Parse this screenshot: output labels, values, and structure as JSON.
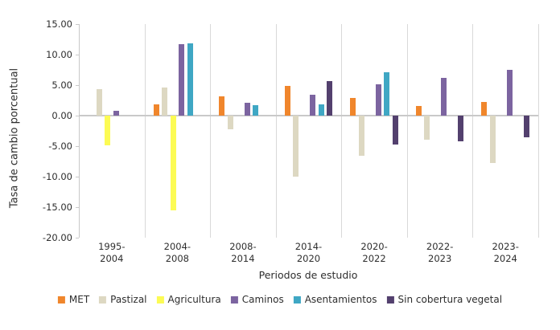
{
  "chart_data": {
    "type": "bar",
    "title": "",
    "xlabel": "Periodos de estudio",
    "ylabel": "Tasa de cambio porcentual",
    "categories": [
      "1995-2004",
      "2004-2008",
      "2008-2014",
      "2014-2020",
      "2020-2022",
      "2022-2023",
      "2023-2024"
    ],
    "series": [
      {
        "name": "MET",
        "color": "#F0862C",
        "values": [
          null,
          1.9,
          3.2,
          4.9,
          2.9,
          1.6,
          2.2
        ]
      },
      {
        "name": "Pastizal",
        "color": "#DDD8C2",
        "values": [
          4.4,
          4.6,
          -2.3,
          -10.0,
          -6.6,
          -3.9,
          -7.8
        ]
      },
      {
        "name": "Agricultura",
        "color": "#FCFB54",
        "values": [
          -4.9,
          -15.5,
          null,
          null,
          null,
          null,
          null
        ]
      },
      {
        "name": "Caminos",
        "color": "#7C64A0",
        "values": [
          0.8,
          11.7,
          2.1,
          3.4,
          5.1,
          6.2,
          7.5
        ]
      },
      {
        "name": "Asentamientos",
        "color": "#3FA7C4",
        "values": [
          null,
          11.9,
          1.7,
          1.8,
          7.1,
          null,
          null
        ]
      },
      {
        "name": "Sin cobertura vegetal",
        "color": "#53406E",
        "values": [
          null,
          null,
          null,
          5.7,
          -4.7,
          -4.2,
          -3.5
        ]
      }
    ],
    "ylim": [
      -20,
      15
    ],
    "ytick_values": [
      15,
      10,
      5,
      0,
      -5,
      -10,
      -15,
      -20
    ],
    "ytick_labels": [
      "15.00",
      "10.00",
      "5.00",
      "0.00",
      "-5.00",
      "-10.00",
      "-15.00",
      "-20.00"
    ],
    "grid": "vertical-category-separators",
    "legend_position": "bottom"
  },
  "colors": {
    "gridline": "#D9D9D9",
    "axis_line": "#C9C9C9",
    "zero_line": "#C9C9C9",
    "text": "#2E2E2E",
    "background": "#FFFFFF"
  }
}
